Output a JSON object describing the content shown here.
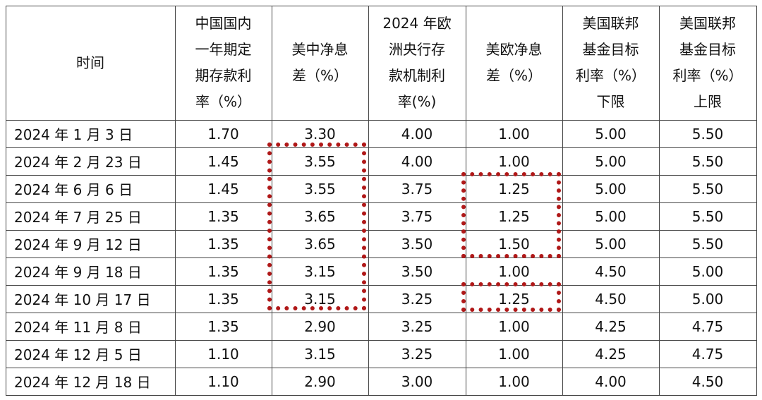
{
  "table": {
    "header": [
      [
        "时间"
      ],
      [
        "中国国内",
        "一年期定",
        "期存款利",
        "率（%）"
      ],
      [
        "美中净息",
        "差（%）"
      ],
      [
        "2024 年欧",
        "洲央行存",
        "款机制利",
        "率(%)"
      ],
      [
        "美欧净息",
        "差（%）"
      ],
      [
        "美国联邦",
        "基金目标",
        "利率（%）",
        "下限"
      ],
      [
        "美国联邦",
        "基金目标",
        "利率（%）",
        "上限"
      ]
    ],
    "rows": [
      [
        "2024 年 1 月 3 日",
        "1.70",
        "3.30",
        "4.00",
        "1.00",
        "5.00",
        "5.50"
      ],
      [
        "2024 年 2 月 23 日",
        "1.45",
        "3.55",
        "4.00",
        "1.00",
        "5.00",
        "5.50"
      ],
      [
        "2024 年 6 月 6 日",
        "1.45",
        "3.55",
        "3.75",
        "1.25",
        "5.00",
        "5.50"
      ],
      [
        "2024 年 7 月 25 日",
        "1.35",
        "3.65",
        "3.75",
        "1.25",
        "5.00",
        "5.50"
      ],
      [
        "2024 年 9 月 12 日",
        "1.35",
        "3.65",
        "3.50",
        "1.50",
        "5.00",
        "5.50"
      ],
      [
        "2024 年 9 月 18 日",
        "1.35",
        "3.15",
        "3.50",
        "1.00",
        "4.50",
        "5.00"
      ],
      [
        "2024 年 10 月 17 日",
        "1.35",
        "3.15",
        "3.25",
        "1.25",
        "4.50",
        "5.00"
      ],
      [
        "2024 年 11 月 8 日",
        "1.35",
        "2.90",
        "3.25",
        "1.00",
        "4.25",
        "4.75"
      ],
      [
        "2024 年 12 月 5 日",
        "1.10",
        "3.15",
        "3.25",
        "1.00",
        "4.25",
        "4.75"
      ],
      [
        "2024 年 12 月 18 日",
        "1.10",
        "2.90",
        "3.00",
        "1.00",
        "4.00",
        "4.50"
      ]
    ]
  }
}
